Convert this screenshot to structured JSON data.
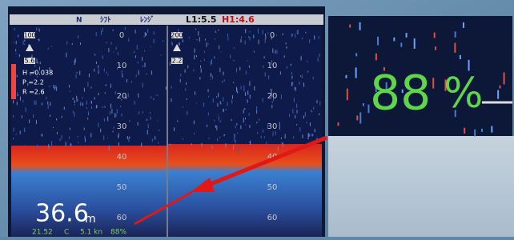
{
  "header": {
    "north": "N",
    "shift": "ｼﾌﾄ",
    "range": "ﾚﾝｼﾞ",
    "low": "L1:5.5",
    "high": "H1:4.6"
  },
  "left_pane": {
    "range_box": "100",
    "gain_box": "5.6",
    "readings": [
      "H =0.038",
      "P =2.2",
      "R =2.6"
    ],
    "depth_labels": [
      "0",
      "10",
      "20",
      "30",
      "40",
      "50",
      "60"
    ]
  },
  "right_pane": {
    "range_box": "200",
    "gain_box": "2.2",
    "depth_labels": [
      "0",
      "10",
      "20",
      "30",
      "40",
      "50",
      "60"
    ]
  },
  "status": {
    "depth": "36.6",
    "depth_unit": "m",
    "temperature": "21.52",
    "temperature_unit": "C",
    "speed": "5.1 kn",
    "percent": "88%"
  },
  "zoom": {
    "value": "88",
    "unit": "%"
  }
}
